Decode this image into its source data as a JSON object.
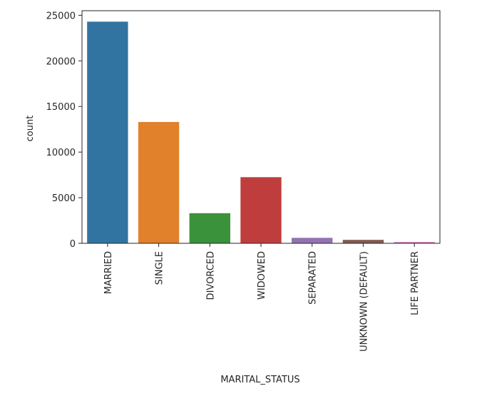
{
  "chart_data": {
    "type": "bar",
    "title": "",
    "xlabel": "MARITAL_STATUS",
    "ylabel": "count",
    "categories": [
      "MARRIED",
      "SINGLE",
      "DIVORCED",
      "WIDOWED",
      "SEPARATED",
      "UNKNOWN (DEFAULT)",
      "LIFE PARTNER"
    ],
    "values": [
      24300,
      13300,
      3300,
      7250,
      600,
      380,
      150
    ],
    "colors": [
      "#3274a1",
      "#e1812c",
      "#3a923a",
      "#c03d3e",
      "#9372b2",
      "#845b53",
      "#d684bd"
    ],
    "yticks": [
      0,
      5000,
      10000,
      15000,
      20000,
      25000
    ],
    "ytick_labels": [
      "0",
      "5000",
      "10000",
      "15000",
      "20000",
      "25000"
    ],
    "ylim": [
      0,
      25500
    ],
    "grid": false,
    "legend": "none"
  }
}
